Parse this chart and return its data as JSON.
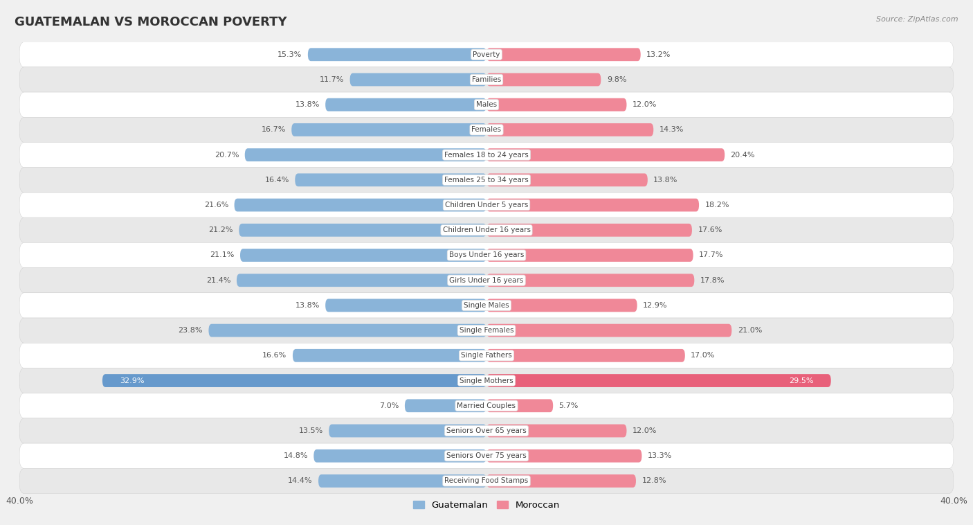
{
  "title": "GUATEMALAN VS MOROCCAN POVERTY",
  "source": "Source: ZipAtlas.com",
  "categories": [
    "Poverty",
    "Families",
    "Males",
    "Females",
    "Females 18 to 24 years",
    "Females 25 to 34 years",
    "Children Under 5 years",
    "Children Under 16 years",
    "Boys Under 16 years",
    "Girls Under 16 years",
    "Single Males",
    "Single Females",
    "Single Fathers",
    "Single Mothers",
    "Married Couples",
    "Seniors Over 65 years",
    "Seniors Over 75 years",
    "Receiving Food Stamps"
  ],
  "guatemalan": [
    15.3,
    11.7,
    13.8,
    16.7,
    20.7,
    16.4,
    21.6,
    21.2,
    21.1,
    21.4,
    13.8,
    23.8,
    16.6,
    32.9,
    7.0,
    13.5,
    14.8,
    14.4
  ],
  "moroccan": [
    13.2,
    9.8,
    12.0,
    14.3,
    20.4,
    13.8,
    18.2,
    17.6,
    17.7,
    17.8,
    12.9,
    21.0,
    17.0,
    29.5,
    5.7,
    12.0,
    13.3,
    12.8
  ],
  "guatemalan_color": "#8ab4d9",
  "moroccan_color": "#f08898",
  "single_mothers_guat_color": "#6699cc",
  "single_mothers_moroc_color": "#e8607a",
  "background_color": "#f0f0f0",
  "row_color_light": "#ffffff",
  "row_color_dark": "#e8e8e8",
  "bar_height": 0.52,
  "xlim": 40.0,
  "legend_guatemalan": "Guatemalan",
  "legend_moroccan": "Moroccan",
  "label_fontsize": 8.0,
  "cat_fontsize": 7.5,
  "title_fontsize": 13,
  "source_fontsize": 8
}
